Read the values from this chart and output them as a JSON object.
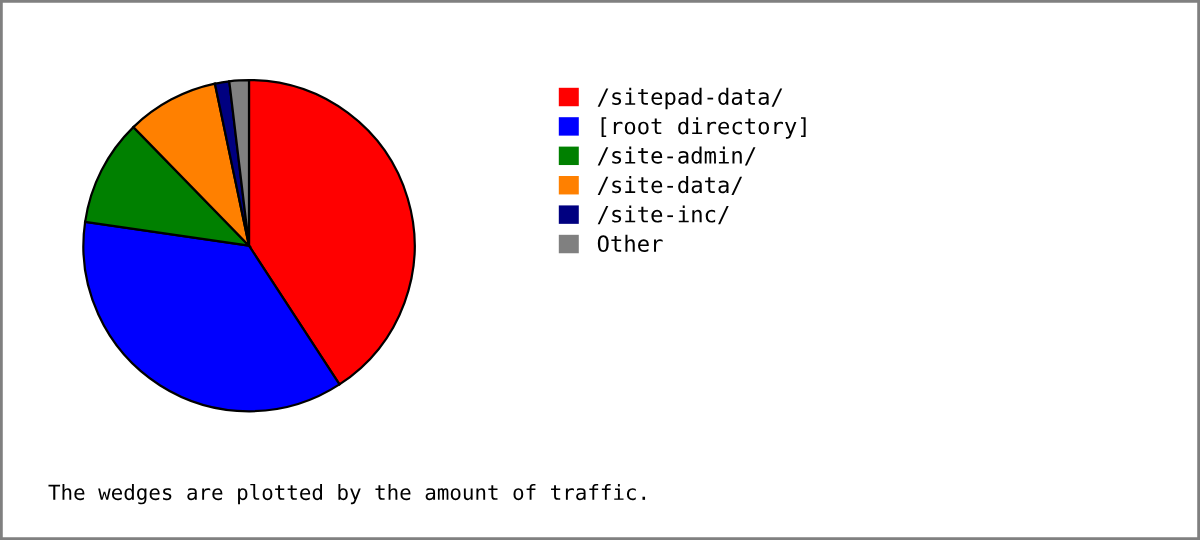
{
  "chart_data": {
    "type": "pie",
    "categories": [
      "/sitepad-data/",
      "[root directory]",
      "/site-admin/",
      "/site-data/",
      "/site-inc/",
      "Other"
    ],
    "values": [
      40.8,
      36.5,
      10.4,
      9.0,
      1.4,
      1.9
    ],
    "colors": [
      "#ff0000",
      "#0000ff",
      "#008000",
      "#ff8000",
      "#000080",
      "#808080"
    ],
    "legend": "right",
    "annotations": [
      "The wedges are plotted by the amount of traffic."
    ]
  }
}
